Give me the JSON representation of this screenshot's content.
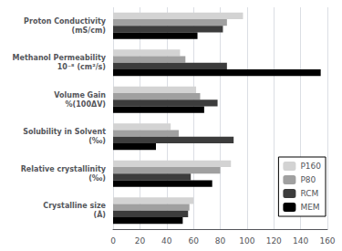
{
  "chart_data": {
    "type": "bar",
    "orientation": "horizontal",
    "categories": [
      "Proton Conductivity\n(mS/cm)",
      "Methanol Permeability\n10⁻⁸ (cm²/s)",
      "Volume Gain\n%(100ΔV)",
      "Solubility in Solvent\n(‰)",
      "Relative crystallinity\n(‰)",
      "Crystalline size\n(Å)"
    ],
    "series": [
      {
        "name": "P160",
        "color": "#d3d3d3",
        "values": [
          97,
          50,
          62,
          43,
          88,
          60
        ]
      },
      {
        "name": "P80",
        "color": "#a0a0a0",
        "values": [
          85,
          54,
          65,
          49,
          80,
          57
        ]
      },
      {
        "name": "RCM",
        "color": "#3c3c3c",
        "values": [
          82,
          85,
          78,
          90,
          58,
          56
        ]
      },
      {
        "name": "MEM",
        "color": "#000000",
        "values": [
          63,
          155,
          68,
          32,
          74,
          52
        ]
      }
    ],
    "xlim": [
      0,
      160
    ],
    "xticks": [
      0,
      20,
      40,
      60,
      80,
      100,
      120,
      140,
      160
    ],
    "grid": true,
    "legend": "lower right"
  }
}
